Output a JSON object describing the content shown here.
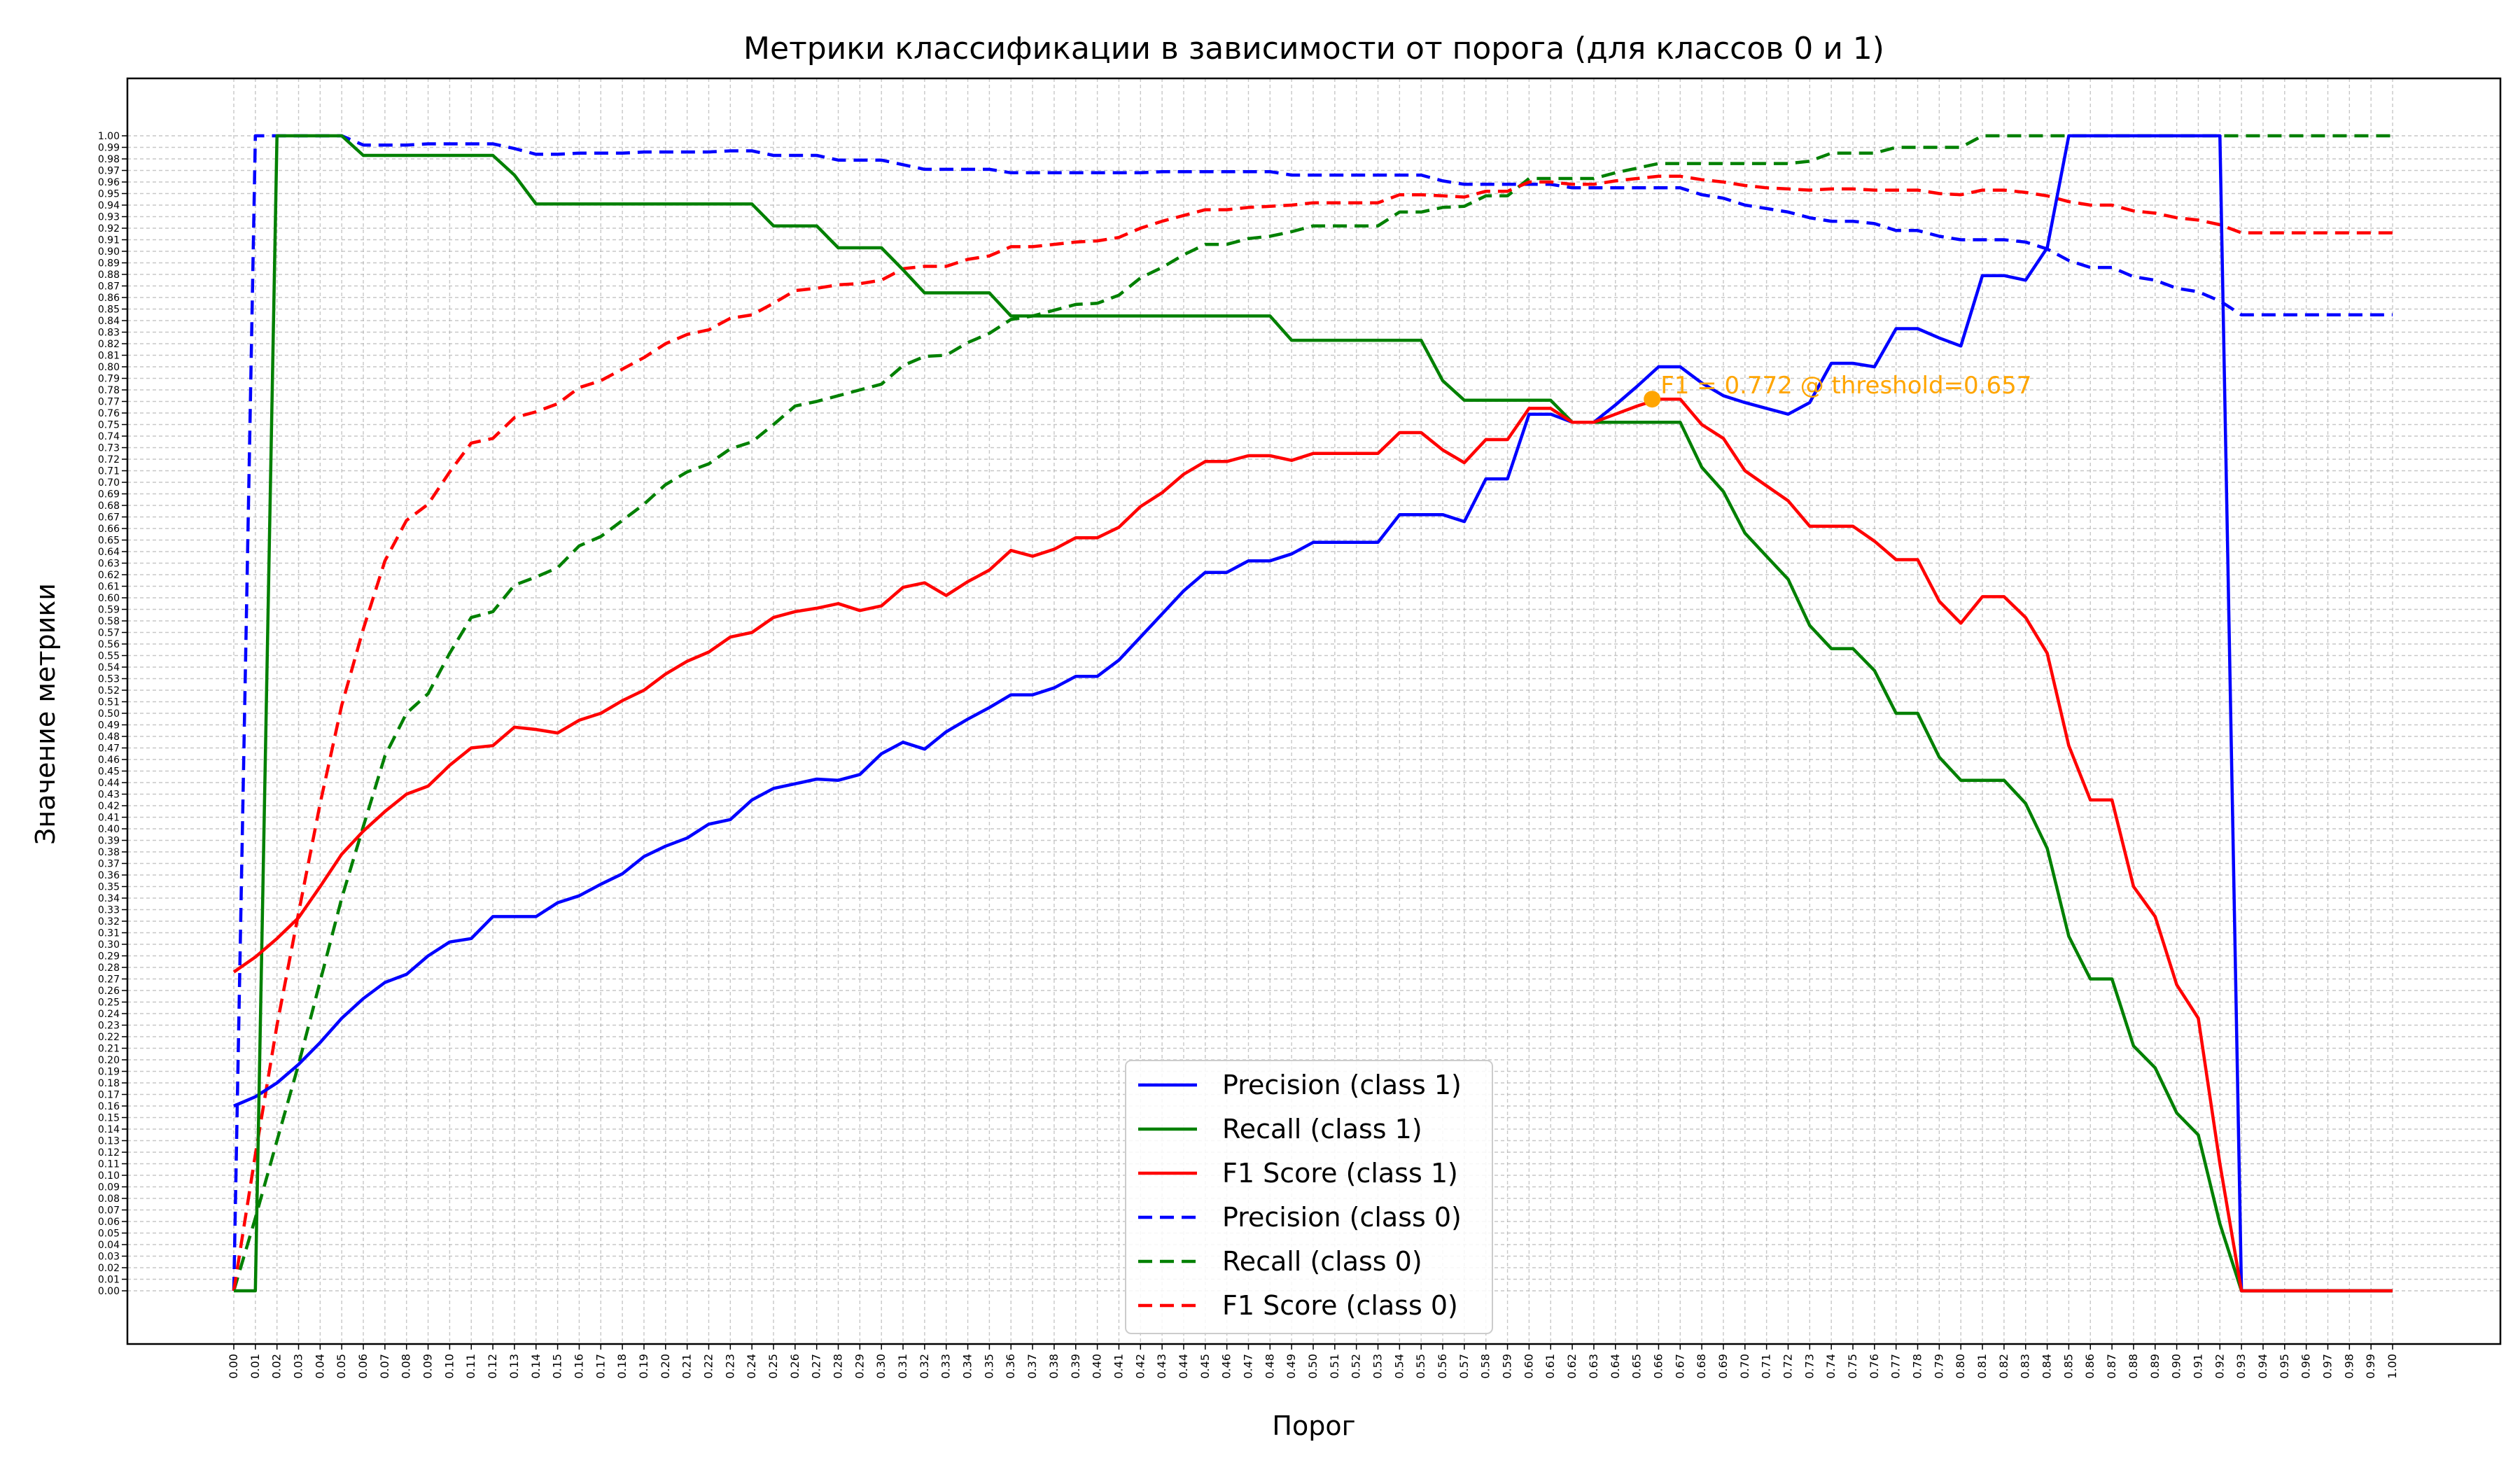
{
  "chart_data": {
    "type": "line",
    "title": "Метрики классификации в зависимости от порога (для классов 0 и 1)",
    "xlabel": "Порог",
    "ylabel": "Значение метрики",
    "xlim": [
      0,
      1
    ],
    "ylim": [
      -0.04,
      1.04
    ],
    "grid": true,
    "legend_position": "bottom-center",
    "x_ticks_step": 0.01,
    "y_ticks_step": 0.01,
    "x": [
      0.0,
      0.01,
      0.02,
      0.03,
      0.04,
      0.05,
      0.06,
      0.07,
      0.08,
      0.09,
      0.1,
      0.11,
      0.12,
      0.13,
      0.14,
      0.15,
      0.16,
      0.17,
      0.18,
      0.19,
      0.2,
      0.21,
      0.22,
      0.23,
      0.24,
      0.25,
      0.26,
      0.27,
      0.28,
      0.29,
      0.3,
      0.31,
      0.32,
      0.33,
      0.34,
      0.35,
      0.36,
      0.37,
      0.38,
      0.39,
      0.4,
      0.41,
      0.42,
      0.43,
      0.44,
      0.45,
      0.46,
      0.47,
      0.48,
      0.49,
      0.5,
      0.51,
      0.52,
      0.53,
      0.54,
      0.55,
      0.56,
      0.57,
      0.58,
      0.59,
      0.6,
      0.61,
      0.62,
      0.63,
      0.64,
      0.65,
      0.66,
      0.67,
      0.68,
      0.69,
      0.7,
      0.71,
      0.72,
      0.73,
      0.74,
      0.75,
      0.76,
      0.77,
      0.78,
      0.79,
      0.8,
      0.81,
      0.82,
      0.83,
      0.84,
      0.85,
      0.86,
      0.87,
      0.88,
      0.89,
      0.9,
      0.91,
      0.92,
      0.93,
      0.94,
      0.95,
      0.96,
      0.97,
      0.98,
      0.99,
      1.0
    ],
    "series": [
      {
        "name": "Precision (class 1)",
        "color": "#0000ff",
        "style": "solid",
        "values": [
          0.16,
          0.168,
          0.18,
          0.196,
          0.215,
          0.236,
          0.253,
          0.267,
          0.274,
          0.29,
          0.302,
          0.305,
          0.324,
          0.324,
          0.324,
          0.336,
          0.342,
          0.352,
          0.361,
          0.376,
          0.385,
          0.392,
          0.404,
          0.408,
          0.425,
          0.435,
          0.439,
          0.443,
          0.442,
          0.447,
          0.465,
          0.475,
          0.469,
          0.484,
          0.495,
          0.505,
          0.516,
          0.516,
          0.522,
          0.532,
          0.532,
          0.546,
          0.566,
          0.586,
          0.606,
          0.622,
          0.622,
          0.632,
          0.632,
          0.638,
          0.648,
          0.648,
          0.648,
          0.648,
          0.672,
          0.672,
          0.672,
          0.666,
          0.703,
          0.703,
          0.759,
          0.759,
          0.752,
          0.752,
          0.767,
          0.783,
          0.8,
          0.8,
          0.786,
          0.775,
          0.769,
          0.764,
          0.759,
          0.769,
          0.803,
          0.803,
          0.8,
          0.833,
          0.833,
          0.825,
          0.818,
          0.879,
          0.879,
          0.875,
          0.903,
          1.0,
          1.0,
          1.0,
          1.0,
          1.0,
          1.0,
          1.0,
          1.0,
          0.0,
          0.0,
          0.0,
          0.0,
          0.0,
          0.0,
          0.0,
          0.0
        ]
      },
      {
        "name": "Recall (class 1)",
        "color": "#008000",
        "style": "solid",
        "values": [
          0.0,
          0.0,
          1.0,
          1.0,
          1.0,
          1.0,
          0.983,
          0.983,
          0.983,
          0.983,
          0.983,
          0.983,
          0.983,
          0.966,
          0.941,
          0.941,
          0.941,
          0.941,
          0.941,
          0.941,
          0.941,
          0.941,
          0.941,
          0.941,
          0.941,
          0.922,
          0.922,
          0.922,
          0.903,
          0.903,
          0.903,
          0.884,
          0.864,
          0.864,
          0.864,
          0.864,
          0.844,
          0.844,
          0.844,
          0.844,
          0.844,
          0.844,
          0.844,
          0.844,
          0.844,
          0.844,
          0.844,
          0.844,
          0.844,
          0.823,
          0.823,
          0.823,
          0.823,
          0.823,
          0.823,
          0.823,
          0.788,
          0.771,
          0.771,
          0.771,
          0.771,
          0.771,
          0.752,
          0.752,
          0.752,
          0.752,
          0.752,
          0.752,
          0.713,
          0.692,
          0.656,
          0.636,
          0.616,
          0.576,
          0.556,
          0.556,
          0.537,
          0.5,
          0.5,
          0.462,
          0.442,
          0.442,
          0.442,
          0.422,
          0.383,
          0.307,
          0.27,
          0.27,
          0.212,
          0.193,
          0.154,
          0.135,
          0.058,
          0.0,
          0.0,
          0.0,
          0.0,
          0.0,
          0.0,
          0.0,
          0.0
        ]
      },
      {
        "name": "F1 Score (class 1)",
        "color": "#ff0000",
        "style": "solid",
        "values": [
          0.276,
          0.289,
          0.305,
          0.323,
          0.35,
          0.378,
          0.398,
          0.415,
          0.43,
          0.437,
          0.455,
          0.47,
          0.472,
          0.488,
          0.486,
          0.483,
          0.494,
          0.5,
          0.511,
          0.52,
          0.534,
          0.545,
          0.553,
          0.566,
          0.57,
          0.583,
          0.588,
          0.591,
          0.595,
          0.589,
          0.593,
          0.609,
          0.613,
          0.602,
          0.614,
          0.624,
          0.641,
          0.636,
          0.642,
          0.652,
          0.652,
          0.661,
          0.679,
          0.691,
          0.707,
          0.718,
          0.718,
          0.723,
          0.723,
          0.719,
          0.725,
          0.725,
          0.725,
          0.725,
          0.743,
          0.743,
          0.728,
          0.717,
          0.737,
          0.737,
          0.764,
          0.764,
          0.752,
          0.752,
          0.759,
          0.766,
          0.772,
          0.772,
          0.75,
          0.738,
          0.71,
          0.697,
          0.684,
          0.662,
          0.662,
          0.662,
          0.649,
          0.633,
          0.633,
          0.597,
          0.578,
          0.601,
          0.601,
          0.583,
          0.552,
          0.472,
          0.425,
          0.425,
          0.35,
          0.324,
          0.265,
          0.236,
          0.11,
          0.0,
          0.0,
          0.0,
          0.0,
          0.0,
          0.0,
          0.0,
          0.0
        ]
      },
      {
        "name": "Precision (class 0)",
        "color": "#0000ff",
        "style": "dashed",
        "values": [
          0.0,
          1.0,
          1.0,
          1.0,
          1.0,
          1.0,
          0.992,
          0.992,
          0.992,
          0.993,
          0.993,
          0.993,
          0.993,
          0.989,
          0.984,
          0.984,
          0.985,
          0.985,
          0.985,
          0.986,
          0.986,
          0.986,
          0.986,
          0.987,
          0.987,
          0.983,
          0.983,
          0.983,
          0.979,
          0.979,
          0.979,
          0.975,
          0.971,
          0.971,
          0.971,
          0.971,
          0.968,
          0.968,
          0.968,
          0.968,
          0.968,
          0.968,
          0.968,
          0.969,
          0.969,
          0.969,
          0.969,
          0.969,
          0.969,
          0.966,
          0.966,
          0.966,
          0.966,
          0.966,
          0.966,
          0.966,
          0.961,
          0.958,
          0.958,
          0.958,
          0.958,
          0.958,
          0.955,
          0.955,
          0.955,
          0.955,
          0.955,
          0.955,
          0.949,
          0.946,
          0.94,
          0.937,
          0.934,
          0.929,
          0.926,
          0.926,
          0.924,
          0.918,
          0.918,
          0.913,
          0.91,
          0.91,
          0.91,
          0.908,
          0.902,
          0.892,
          0.886,
          0.886,
          0.878,
          0.875,
          0.868,
          0.865,
          0.857,
          0.845,
          0.845,
          0.845,
          0.845,
          0.845,
          0.845,
          0.845,
          0.845
        ]
      },
      {
        "name": "Recall (class 0)",
        "color": "#008000",
        "style": "dashed",
        "values": [
          0.0,
          0.063,
          0.13,
          0.196,
          0.268,
          0.34,
          0.402,
          0.463,
          0.5,
          0.517,
          0.552,
          0.583,
          0.588,
          0.611,
          0.618,
          0.626,
          0.645,
          0.653,
          0.667,
          0.681,
          0.698,
          0.709,
          0.716,
          0.729,
          0.735,
          0.75,
          0.766,
          0.77,
          0.775,
          0.78,
          0.785,
          0.801,
          0.809,
          0.81,
          0.821,
          0.829,
          0.841,
          0.844,
          0.849,
          0.854,
          0.855,
          0.862,
          0.877,
          0.886,
          0.897,
          0.906,
          0.906,
          0.911,
          0.913,
          0.917,
          0.922,
          0.922,
          0.922,
          0.922,
          0.934,
          0.934,
          0.938,
          0.939,
          0.948,
          0.948,
          0.963,
          0.963,
          0.963,
          0.963,
          0.968,
          0.972,
          0.976,
          0.976,
          0.976,
          0.976,
          0.976,
          0.976,
          0.976,
          0.978,
          0.985,
          0.985,
          0.985,
          0.99,
          0.99,
          0.99,
          0.99,
          1.0,
          1.0,
          1.0,
          1.0,
          1.0,
          1.0,
          1.0,
          1.0,
          1.0,
          1.0,
          1.0,
          1.0,
          1.0,
          1.0,
          1.0,
          1.0,
          1.0,
          1.0,
          1.0,
          1.0
        ]
      },
      {
        "name": "F1 Score (class 0)",
        "color": "#ff0000",
        "style": "dashed",
        "values": [
          0.0,
          0.118,
          0.23,
          0.327,
          0.422,
          0.507,
          0.573,
          0.632,
          0.667,
          0.681,
          0.709,
          0.734,
          0.738,
          0.756,
          0.761,
          0.768,
          0.782,
          0.788,
          0.798,
          0.808,
          0.82,
          0.828,
          0.832,
          0.842,
          0.845,
          0.855,
          0.866,
          0.868,
          0.871,
          0.872,
          0.875,
          0.885,
          0.887,
          0.887,
          0.893,
          0.896,
          0.904,
          0.904,
          0.906,
          0.908,
          0.909,
          0.912,
          0.92,
          0.926,
          0.931,
          0.936,
          0.936,
          0.938,
          0.939,
          0.94,
          0.942,
          0.942,
          0.942,
          0.942,
          0.949,
          0.949,
          0.948,
          0.947,
          0.952,
          0.952,
          0.96,
          0.96,
          0.958,
          0.958,
          0.961,
          0.963,
          0.965,
          0.965,
          0.962,
          0.96,
          0.957,
          0.955,
          0.954,
          0.953,
          0.954,
          0.954,
          0.953,
          0.953,
          0.953,
          0.95,
          0.949,
          0.953,
          0.953,
          0.951,
          0.948,
          0.943,
          0.94,
          0.94,
          0.935,
          0.933,
          0.929,
          0.927,
          0.923,
          0.916,
          0.916,
          0.916,
          0.916,
          0.916,
          0.916,
          0.916,
          0.916
        ]
      }
    ],
    "annotation": {
      "text": "F1 = 0.772 @ threshold=0.657",
      "x": 0.657,
      "y": 0.772,
      "color": "#ffa500"
    }
  }
}
